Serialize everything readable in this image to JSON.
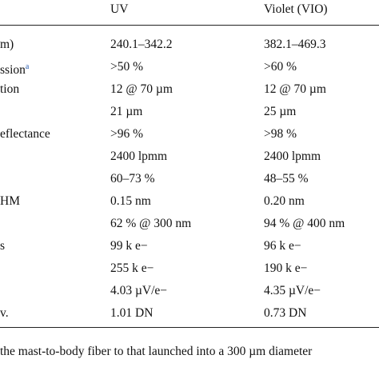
{
  "table": {
    "columns": [
      "UV",
      "Violet (VIO)"
    ],
    "rows": [
      {
        "label": "m)",
        "uv": "240.1–342.2",
        "vio": "382.1–469.3"
      },
      {
        "label": "ssion",
        "note": "a",
        "uv": ">50 %",
        "vio": ">60 %"
      },
      {
        "label": "tion",
        "uv": "12 @ 70 µm",
        "vio": "12 @ 70 µm"
      },
      {
        "uv": "21 µm",
        "vio": "25 µm"
      },
      {
        "label": "eflectance",
        "uv": ">96 %",
        "vio": ">98 %"
      },
      {
        "uv": "2400 lpmm",
        "vio": "2400 lpmm"
      },
      {
        "uv": "60–73 %",
        "vio": "48–55 %"
      },
      {
        "label": "HM",
        "uv": "0.15 nm",
        "vio": "0.20 nm"
      },
      {
        "uv": "62 % @ 300 nm",
        "vio": "94 % @ 400 nm"
      },
      {
        "label": "s",
        "uv": "99 k e−",
        "vio": "96 k e−"
      },
      {
        "uv": "255 k e−",
        "vio": "190 k e−"
      },
      {
        "uv": "4.03 µV/e−",
        "vio": "4.35 µV/e−"
      },
      {
        "label": "v.",
        "uv": "1.01 DN",
        "vio": "0.73 DN"
      }
    ]
  },
  "footnote": "the mast-to-body fiber to that launched into a 300 µm diameter"
}
